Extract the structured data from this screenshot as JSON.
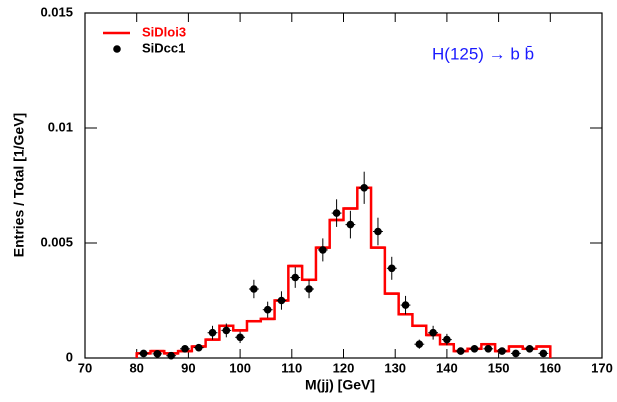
{
  "chart_data": {
    "type": "histogram",
    "xlabel": "M(jj) [GeV]",
    "ylabel": "Entries / Total  [1/GeV]",
    "annotation": "H(125) →  b b̄",
    "annotation_color": "#1a1aff",
    "xlim": [
      70,
      170
    ],
    "xticks": [
      70,
      80,
      90,
      100,
      110,
      120,
      130,
      140,
      150,
      160,
      170
    ],
    "ylim": [
      0,
      0.015
    ],
    "yticks": [
      0,
      0.005,
      0.01,
      0.015
    ],
    "legend": "top-left",
    "bins": [
      80,
      82.67,
      85.33,
      88,
      90.67,
      93.33,
      96,
      98.67,
      101.33,
      104,
      106.67,
      109.33,
      112,
      114.67,
      117.33,
      120,
      122.67,
      125.33,
      128,
      130.67,
      133.33,
      136,
      138.67,
      141.33,
      144,
      146.67,
      149.33,
      152,
      154.67,
      157.33,
      160
    ],
    "series": [
      {
        "name": "SiDloi3",
        "color": "#ff0000",
        "style": "step",
        "values": [
          0.0002,
          0.0003,
          0.0002,
          0.0003,
          0.0005,
          0.0008,
          0.0014,
          0.0012,
          0.0016,
          0.0017,
          0.0025,
          0.004,
          0.0034,
          0.0048,
          0.006,
          0.0065,
          0.0074,
          0.0048,
          0.0028,
          0.0019,
          0.0014,
          0.001,
          0.0006,
          0.0003,
          0.0004,
          0.0006,
          0.0003,
          0.0005,
          0.0004,
          0.0005
        ]
      },
      {
        "name": "SiDcc1",
        "color": "#000000",
        "style": "points",
        "values": [
          0.0002,
          0.00018,
          0.0001,
          0.0004,
          0.00045,
          0.0011,
          0.0012,
          0.0009,
          0.003,
          0.0021,
          0.0025,
          0.0035,
          0.003,
          0.0047,
          0.0063,
          0.0058,
          0.0074,
          0.0055,
          0.0039,
          0.0023,
          0.0006,
          0.0011,
          0.0008,
          0.0003,
          0.0004,
          0.0004,
          0.0003,
          0.0002,
          0.0004,
          0.0002
        ],
        "errors": [
          0.0001,
          0.0001,
          0.0001,
          0.00015,
          0.00015,
          0.0003,
          0.0003,
          0.00025,
          0.0004,
          0.00035,
          0.0004,
          0.00045,
          0.0004,
          0.0005,
          0.0006,
          0.0006,
          0.0007,
          0.0006,
          0.0005,
          0.0004,
          0.0002,
          0.0003,
          0.00025,
          0.00015,
          0.00015,
          0.00015,
          0.00015,
          0.0001,
          0.00015,
          0.0001
        ]
      }
    ]
  }
}
